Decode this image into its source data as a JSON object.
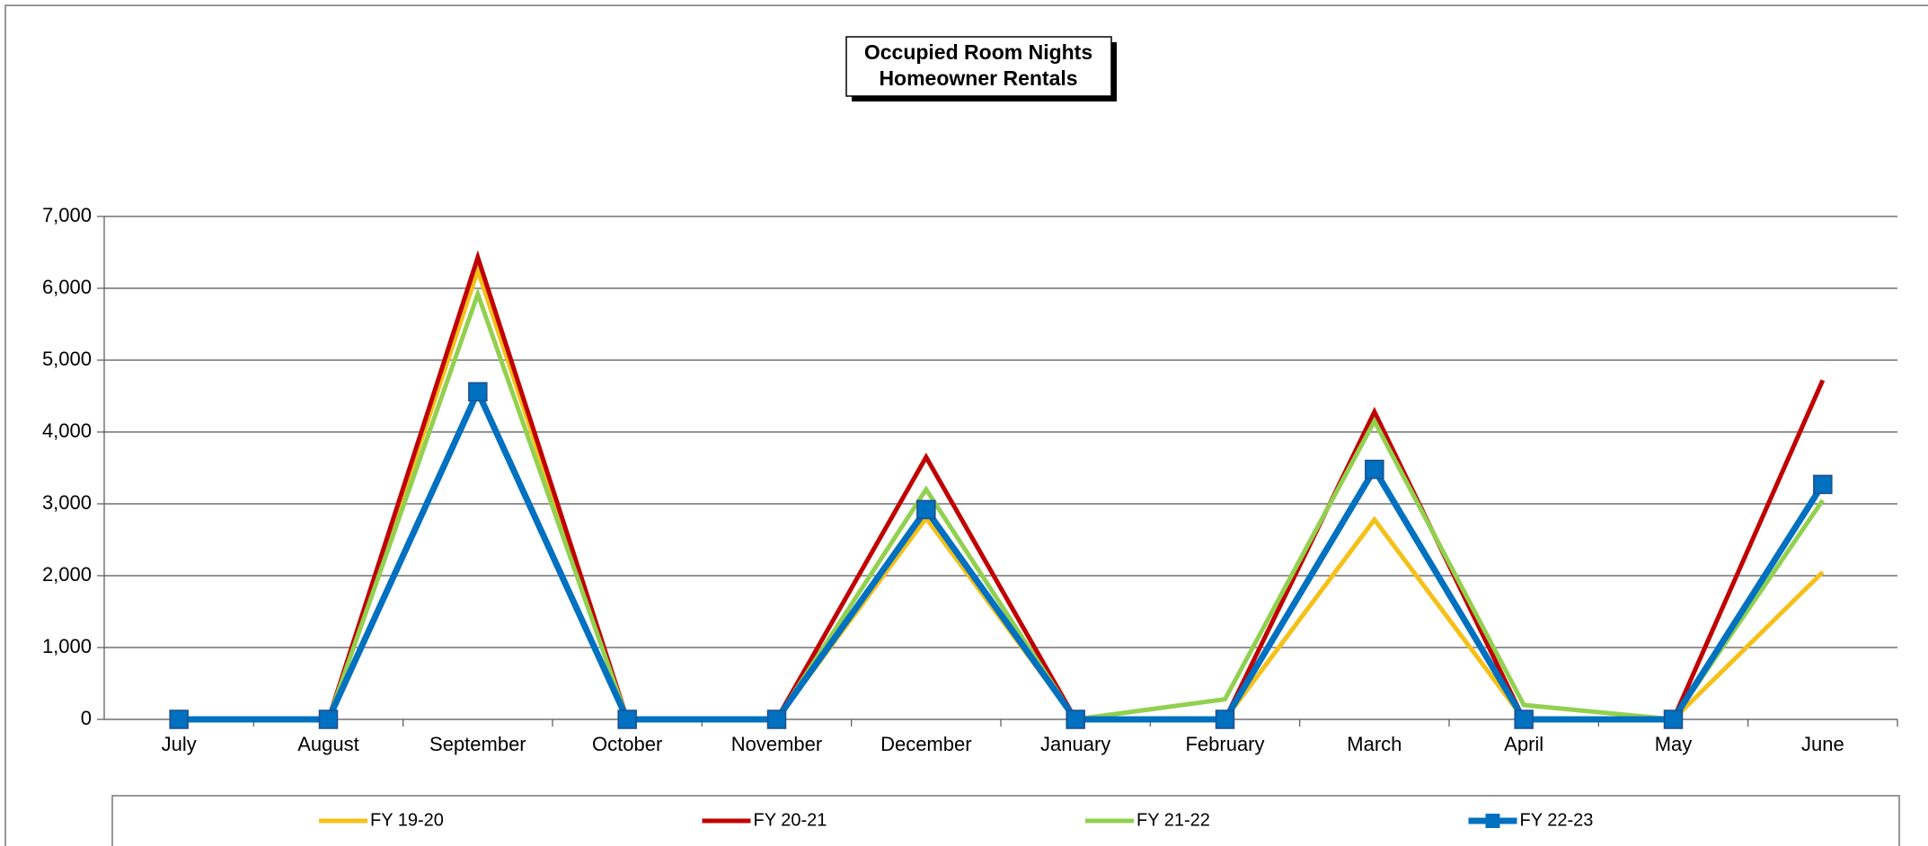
{
  "chart_data": {
    "type": "line",
    "title": [
      "Occupied Room Nights",
      "Homeowner Rentals"
    ],
    "categories": [
      "July",
      "August",
      "September",
      "October",
      "November",
      "December",
      "January",
      "February",
      "March",
      "April",
      "May",
      "June"
    ],
    "series": [
      {
        "name": "FY 19-20",
        "color": "#f5c018",
        "values": [
          0,
          0,
          6250,
          0,
          0,
          2800,
          0,
          0,
          2780,
          0,
          0,
          2050
        ]
      },
      {
        "name": "FY 20-21",
        "color": "#c00000",
        "values": [
          0,
          0,
          6430,
          0,
          0,
          3650,
          0,
          0,
          4280,
          0,
          0,
          4720
        ]
      },
      {
        "name": "FY 21-22",
        "color": "#92d050",
        "values": [
          0,
          0,
          5920,
          0,
          0,
          3200,
          0,
          280,
          4150,
          200,
          0,
          3050
        ]
      },
      {
        "name": "FY 22-23",
        "color": "#0070c0",
        "marker": "square",
        "values": [
          0,
          0,
          4560,
          0,
          0,
          2920,
          0,
          0,
          3480,
          0,
          0,
          3270
        ]
      }
    ],
    "ylim": [
      0,
      7000
    ],
    "yticks": [
      0,
      {
        "value": 1000,
        "label": "1,000"
      },
      {
        "value": 2000,
        "label": "2,000"
      },
      {
        "value": 3000,
        "label": "3,000"
      },
      {
        "value": 4000,
        "label": "4,000"
      },
      {
        "value": 5000,
        "label": "5,000"
      },
      {
        "value": 6000,
        "label": "6,000"
      },
      {
        "value": 7000,
        "label": "7,000"
      }
    ],
    "grid": true,
    "legend": "bottom"
  }
}
